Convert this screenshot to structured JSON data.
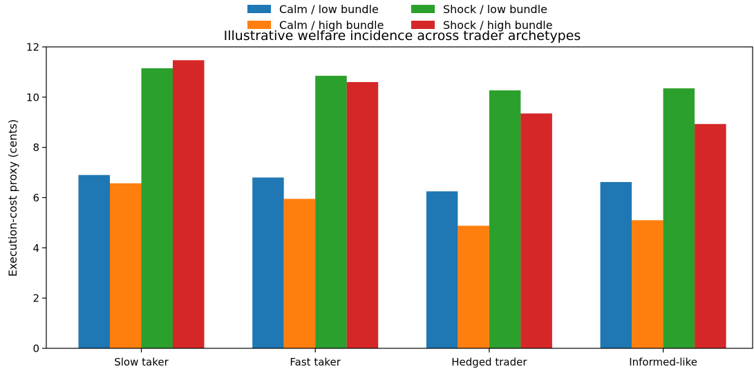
{
  "chart_data": {
    "type": "bar",
    "title": "Illustrative welfare incidence across trader archetypes",
    "xlabel": "",
    "ylabel": "Execution-cost proxy (cents)",
    "ylim": [
      0,
      12
    ],
    "yticks": [
      0,
      2,
      4,
      6,
      8,
      10,
      12
    ],
    "grid": false,
    "legend_placement": "top-center",
    "categories": [
      "Slow taker",
      "Fast taker",
      "Hedged trader",
      "Informed-like"
    ],
    "series": [
      {
        "name": "Calm / low bundle",
        "color": "#1f77b4",
        "values": [
          6.9,
          6.8,
          6.25,
          6.62
        ]
      },
      {
        "name": "Calm / high bundle",
        "color": "#ff7f0e",
        "values": [
          6.57,
          5.95,
          4.88,
          5.1
        ]
      },
      {
        "name": "Shock / low bundle",
        "color": "#2ca02c",
        "values": [
          11.15,
          10.85,
          10.27,
          10.35
        ]
      },
      {
        "name": "Shock / high bundle",
        "color": "#d62728",
        "values": [
          11.47,
          10.6,
          9.35,
          8.93
        ]
      }
    ]
  }
}
